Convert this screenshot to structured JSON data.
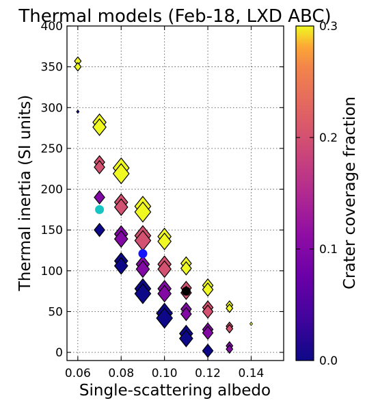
{
  "chart_data": {
    "type": "scatter",
    "title": "Thermal models (Feb-18, LXD ABC)",
    "xlabel": "Single-scattering albedo",
    "ylabel": "Thermal inertia (SI units)",
    "xlim": [
      0.055,
      0.155
    ],
    "ylim": [
      -10,
      400
    ],
    "xticks": [
      0.06,
      0.08,
      0.1,
      0.12,
      0.14
    ],
    "xtick_labels": [
      "0.06",
      "0.08",
      "0.10",
      "0.12",
      "0.14"
    ],
    "yticks": [
      0,
      50,
      100,
      150,
      200,
      250,
      300,
      350,
      400
    ],
    "ytick_labels": [
      "0",
      "50",
      "100",
      "150",
      "200",
      "250",
      "300",
      "350",
      "400"
    ],
    "grid": true,
    "colorbar": {
      "label": "Crater coverage fraction",
      "range": [
        0.0,
        0.3
      ],
      "ticks": [
        0.0,
        0.1,
        0.2,
        0.3
      ],
      "tick_labels": [
        "0.0",
        "0.1",
        "0.2",
        "0.3"
      ],
      "colormap": "plasma"
    },
    "model_points": [
      {
        "albedo": 0.06,
        "inertia": 295,
        "crater_fraction": 0.0,
        "size": "tiny"
      },
      {
        "albedo": 0.06,
        "inertia": 357,
        "crater_fraction": 0.3,
        "size": "small"
      },
      {
        "albedo": 0.06,
        "inertia": 350,
        "crater_fraction": 0.3,
        "size": "small"
      },
      {
        "albedo": 0.07,
        "inertia": 150,
        "crater_fraction": 0.0,
        "size": "medium"
      },
      {
        "albedo": 0.07,
        "inertia": 190,
        "crater_fraction": 0.1,
        "size": "medium"
      },
      {
        "albedo": 0.07,
        "inertia": 233,
        "crater_fraction": 0.2,
        "size": "medium"
      },
      {
        "albedo": 0.07,
        "inertia": 227,
        "crater_fraction": 0.2,
        "size": "medium"
      },
      {
        "albedo": 0.07,
        "inertia": 282,
        "crater_fraction": 0.3,
        "size": "large"
      },
      {
        "albedo": 0.07,
        "inertia": 276,
        "crater_fraction": 0.3,
        "size": "large"
      },
      {
        "albedo": 0.08,
        "inertia": 112,
        "crater_fraction": 0.0,
        "size": "large"
      },
      {
        "albedo": 0.08,
        "inertia": 106,
        "crater_fraction": 0.0,
        "size": "large"
      },
      {
        "albedo": 0.08,
        "inertia": 145,
        "crater_fraction": 0.1,
        "size": "large"
      },
      {
        "albedo": 0.08,
        "inertia": 139,
        "crater_fraction": 0.1,
        "size": "large"
      },
      {
        "albedo": 0.08,
        "inertia": 184,
        "crater_fraction": 0.2,
        "size": "large"
      },
      {
        "albedo": 0.08,
        "inertia": 178,
        "crater_fraction": 0.2,
        "size": "large"
      },
      {
        "albedo": 0.08,
        "inertia": 226,
        "crater_fraction": 0.3,
        "size": "xlarge"
      },
      {
        "albedo": 0.08,
        "inertia": 219,
        "crater_fraction": 0.3,
        "size": "xlarge"
      },
      {
        "albedo": 0.09,
        "inertia": 78,
        "crater_fraction": 0.0,
        "size": "xlarge"
      },
      {
        "albedo": 0.09,
        "inertia": 72,
        "crater_fraction": 0.0,
        "size": "xlarge"
      },
      {
        "albedo": 0.09,
        "inertia": 108,
        "crater_fraction": 0.1,
        "size": "large"
      },
      {
        "albedo": 0.09,
        "inertia": 102,
        "crater_fraction": 0.1,
        "size": "large"
      },
      {
        "albedo": 0.09,
        "inertia": 143,
        "crater_fraction": 0.2,
        "size": "xlarge"
      },
      {
        "albedo": 0.09,
        "inertia": 137,
        "crater_fraction": 0.2,
        "size": "xlarge"
      },
      {
        "albedo": 0.09,
        "inertia": 179,
        "crater_fraction": 0.3,
        "size": "xlarge"
      },
      {
        "albedo": 0.09,
        "inertia": 172,
        "crater_fraction": 0.3,
        "size": "xlarge"
      },
      {
        "albedo": 0.1,
        "inertia": 48,
        "crater_fraction": 0.0,
        "size": "xlarge"
      },
      {
        "albedo": 0.1,
        "inertia": 42,
        "crater_fraction": 0.0,
        "size": "xlarge"
      },
      {
        "albedo": 0.1,
        "inertia": 78,
        "crater_fraction": 0.1,
        "size": "large"
      },
      {
        "albedo": 0.1,
        "inertia": 72,
        "crater_fraction": 0.1,
        "size": "large"
      },
      {
        "albedo": 0.1,
        "inertia": 108,
        "crater_fraction": 0.2,
        "size": "large"
      },
      {
        "albedo": 0.1,
        "inertia": 102,
        "crater_fraction": 0.2,
        "size": "large"
      },
      {
        "albedo": 0.1,
        "inertia": 142,
        "crater_fraction": 0.3,
        "size": "large"
      },
      {
        "albedo": 0.1,
        "inertia": 136,
        "crater_fraction": 0.3,
        "size": "large"
      },
      {
        "albedo": 0.11,
        "inertia": 23,
        "crater_fraction": 0.0,
        "size": "large"
      },
      {
        "albedo": 0.11,
        "inertia": 17,
        "crater_fraction": 0.0,
        "size": "large"
      },
      {
        "albedo": 0.11,
        "inertia": 53,
        "crater_fraction": 0.1,
        "size": "medium"
      },
      {
        "albedo": 0.11,
        "inertia": 47,
        "crater_fraction": 0.1,
        "size": "medium"
      },
      {
        "albedo": 0.11,
        "inertia": 79,
        "crater_fraction": 0.2,
        "size": "medium"
      },
      {
        "albedo": 0.11,
        "inertia": 73,
        "crater_fraction": 0.2,
        "size": "medium"
      },
      {
        "albedo": 0.11,
        "inertia": 109,
        "crater_fraction": 0.3,
        "size": "medium"
      },
      {
        "albedo": 0.11,
        "inertia": 103,
        "crater_fraction": 0.3,
        "size": "medium"
      },
      {
        "albedo": 0.12,
        "inertia": 2,
        "crater_fraction": 0.0,
        "size": "medium"
      },
      {
        "albedo": 0.12,
        "inertia": 28,
        "crater_fraction": 0.1,
        "size": "medium"
      },
      {
        "albedo": 0.12,
        "inertia": 24,
        "crater_fraction": 0.1,
        "size": "medium"
      },
      {
        "albedo": 0.12,
        "inertia": 55,
        "crater_fraction": 0.2,
        "size": "medium"
      },
      {
        "albedo": 0.12,
        "inertia": 50,
        "crater_fraction": 0.2,
        "size": "medium"
      },
      {
        "albedo": 0.12,
        "inertia": 82,
        "crater_fraction": 0.3,
        "size": "medium"
      },
      {
        "albedo": 0.12,
        "inertia": 77,
        "crater_fraction": 0.3,
        "size": "medium"
      },
      {
        "albedo": 0.13,
        "inertia": 8,
        "crater_fraction": 0.1,
        "size": "small"
      },
      {
        "albedo": 0.13,
        "inertia": 4,
        "crater_fraction": 0.1,
        "size": "small"
      },
      {
        "albedo": 0.13,
        "inertia": 32,
        "crater_fraction": 0.2,
        "size": "small"
      },
      {
        "albedo": 0.13,
        "inertia": 29,
        "crater_fraction": 0.2,
        "size": "small"
      },
      {
        "albedo": 0.13,
        "inertia": 58,
        "crater_fraction": 0.3,
        "size": "small"
      },
      {
        "albedo": 0.13,
        "inertia": 54,
        "crater_fraction": 0.3,
        "size": "small"
      },
      {
        "albedo": 0.14,
        "inertia": 35,
        "crater_fraction": 0.3,
        "size": "tiny"
      }
    ],
    "highlight_points": [
      {
        "albedo": 0.07,
        "inertia": 175,
        "color": "#17c4c4"
      },
      {
        "albedo": 0.09,
        "inertia": 121,
        "color": "#1414ff"
      },
      {
        "albedo": 0.11,
        "inertia": 75,
        "color": "#000000"
      }
    ]
  }
}
